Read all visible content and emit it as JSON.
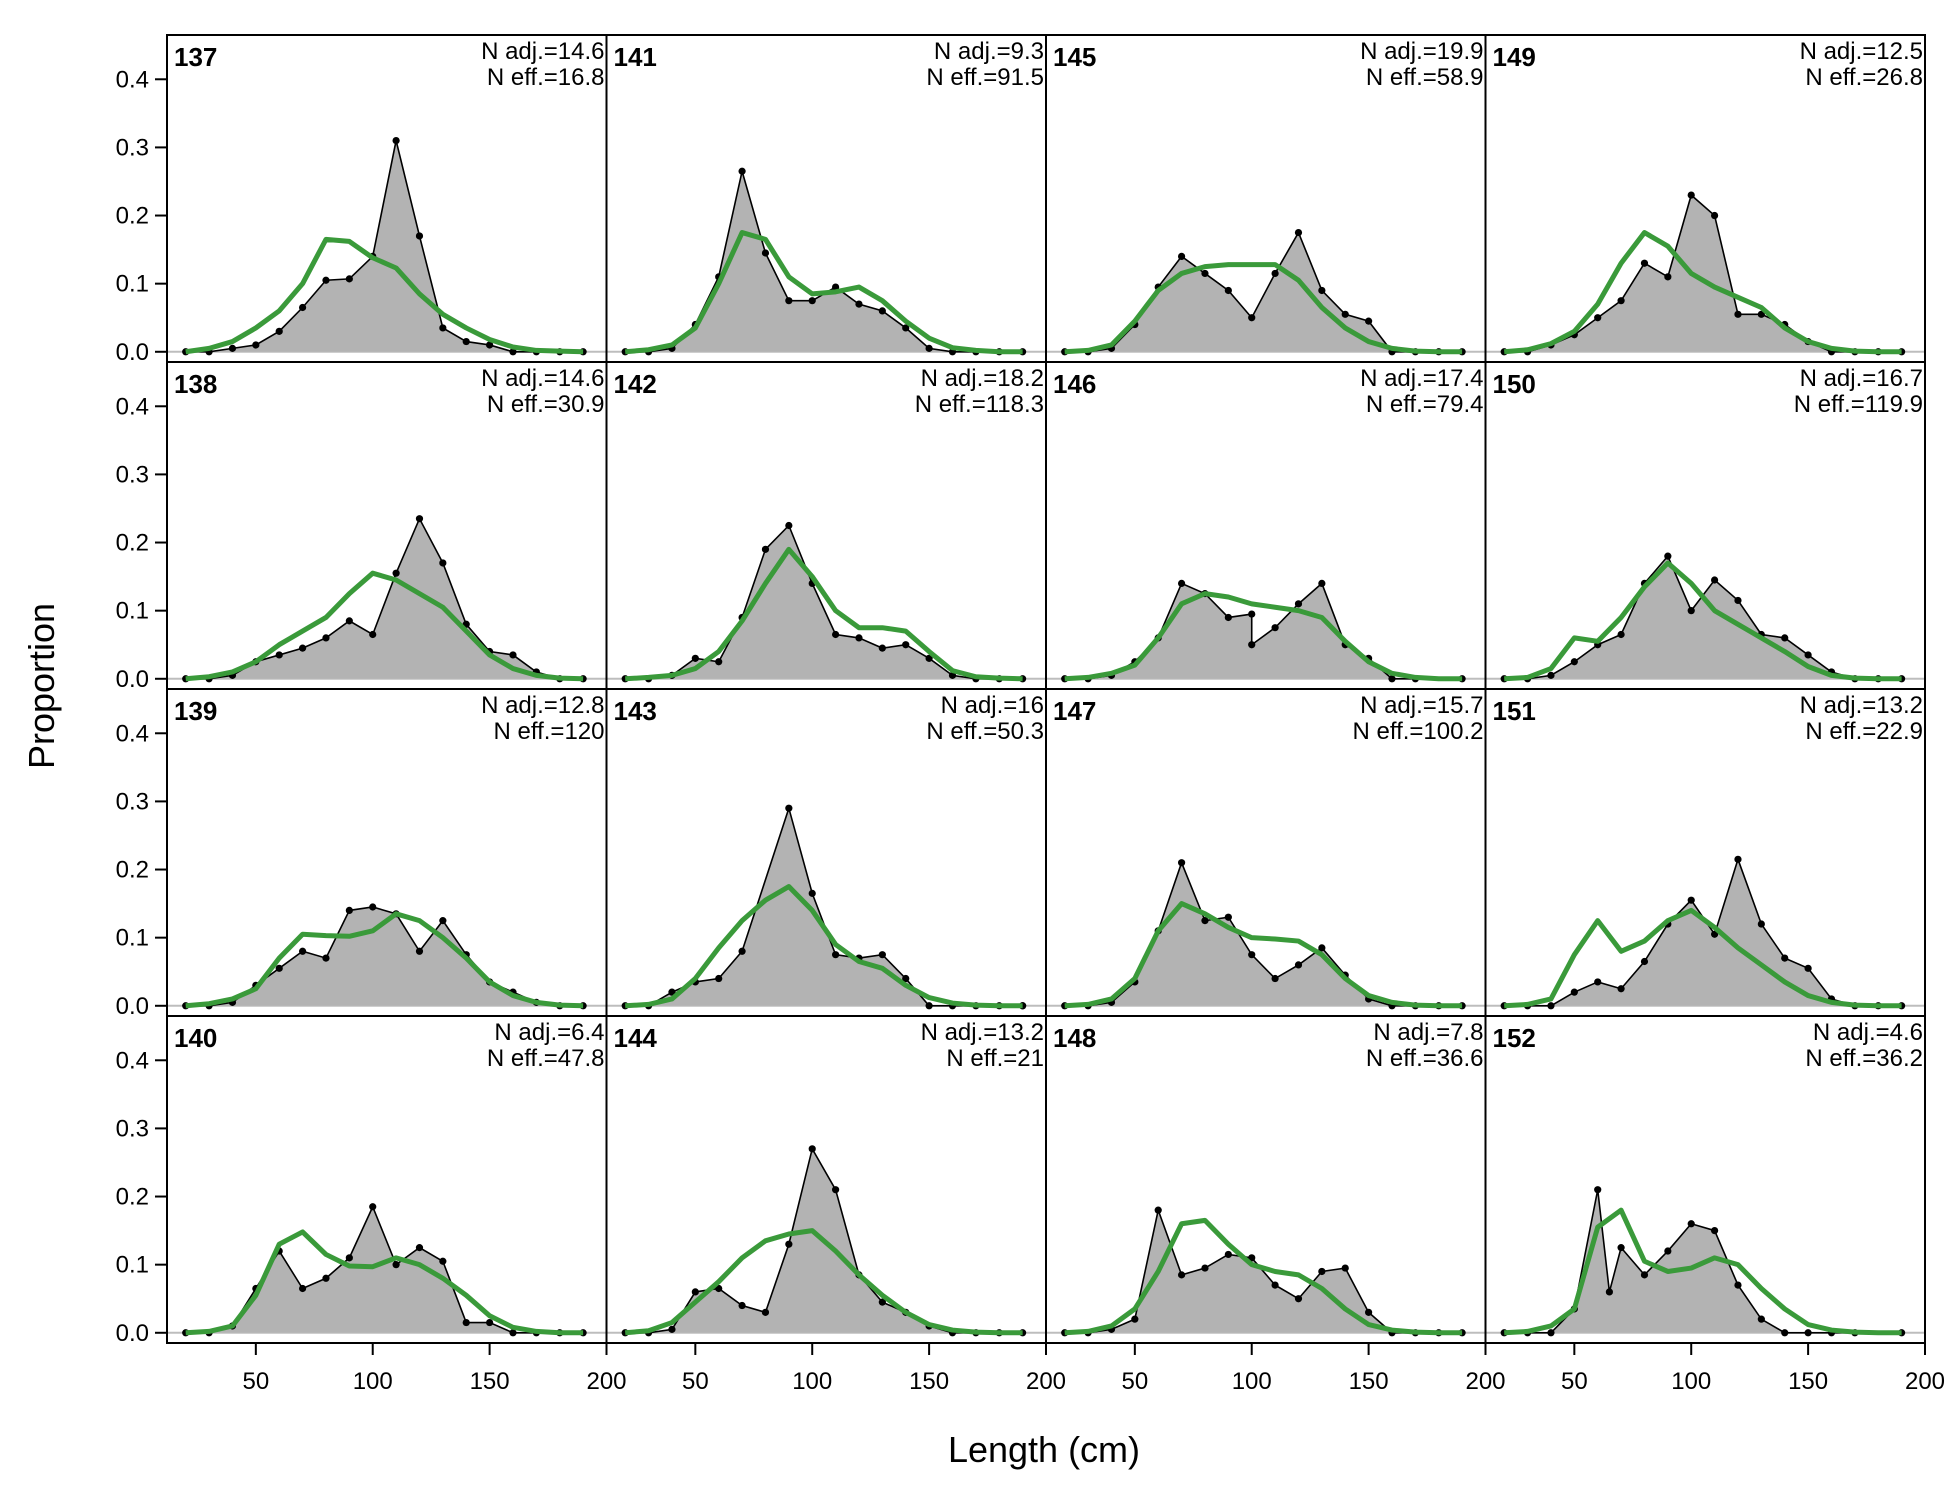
{
  "figure": {
    "xlabel": "Length (cm)",
    "ylabel": "Proportion",
    "colors": {
      "observed_fill": "#b3b3b3",
      "observed_line": "#000000",
      "expected_line": "#3a9a3a",
      "zero_line": "#bdbdbd",
      "frame": "#000000"
    }
  },
  "chart_data": {
    "type": "area",
    "layout": {
      "rows": 4,
      "cols": 4,
      "order": "column-major"
    },
    "xlim": [
      12,
      200
    ],
    "ylim": [
      -0.015,
      0.465
    ],
    "xticks": [
      50,
      100,
      150,
      200
    ],
    "yticks": [
      "0.0",
      "0.1",
      "0.2",
      "0.3",
      "0.4"
    ],
    "x": [
      20,
      30,
      40,
      50,
      60,
      70,
      80,
      90,
      100,
      110,
      120,
      130,
      140,
      150,
      160,
      170,
      180,
      190
    ],
    "series_names": [
      "observed",
      "expected"
    ],
    "panels": [
      {
        "id": "137",
        "n_adj": "N adj.=14.6",
        "n_eff": "N eff.=16.8",
        "observed": [
          0,
          0,
          0.005,
          0.01,
          0.03,
          0.065,
          0.105,
          0.107,
          0.14,
          0.31,
          0.17,
          0.035,
          0.015,
          0.01,
          0,
          0,
          0,
          0
        ],
        "expected": [
          0,
          0.005,
          0.015,
          0.035,
          0.06,
          0.1,
          0.165,
          0.162,
          0.138,
          0.123,
          0.085,
          0.055,
          0.035,
          0.018,
          0.007,
          0.002,
          0.001,
          0
        ]
      },
      {
        "id": "138",
        "n_adj": "N adj.=14.6",
        "n_eff": "N eff.=30.9",
        "observed": [
          0,
          0,
          0.005,
          0.025,
          0.035,
          0.045,
          0.06,
          0.085,
          0.065,
          0.155,
          0.235,
          0.17,
          0.08,
          0.04,
          0.035,
          0.01,
          0,
          0
        ],
        "expected": [
          0,
          0.003,
          0.01,
          0.025,
          0.05,
          0.07,
          0.09,
          0.125,
          0.155,
          0.145,
          0.125,
          0.105,
          0.07,
          0.035,
          0.015,
          0.005,
          0.001,
          0
        ]
      },
      {
        "id": "139",
        "n_adj": "N adj.=12.8",
        "n_eff": "N eff.=120",
        "observed": [
          0,
          0,
          0.005,
          0.03,
          0.055,
          0.08,
          0.07,
          0.14,
          0.145,
          0.135,
          0.08,
          0.125,
          0.075,
          0.035,
          0.02,
          0.005,
          0,
          0
        ],
        "expected": [
          0,
          0.003,
          0.01,
          0.025,
          0.07,
          0.105,
          0.103,
          0.102,
          0.11,
          0.135,
          0.125,
          0.1,
          0.07,
          0.035,
          0.015,
          0.005,
          0.001,
          0
        ]
      },
      {
        "id": "140",
        "n_adj": "N adj.=6.4",
        "n_eff": "N eff.=47.8",
        "observed": [
          0,
          0,
          0.01,
          0.065,
          0.12,
          0.065,
          0.08,
          0.11,
          0.185,
          0.1,
          0.125,
          0.105,
          0.015,
          0.015,
          0,
          0,
          0,
          0
        ],
        "expected": [
          0,
          0.002,
          0.01,
          0.055,
          0.13,
          0.148,
          0.115,
          0.098,
          0.097,
          0.11,
          0.1,
          0.08,
          0.055,
          0.025,
          0.008,
          0.002,
          0,
          0
        ]
      },
      {
        "id": "141",
        "n_adj": "N adj.=9.3",
        "n_eff": "N eff.=91.5",
        "observed": [
          0,
          0,
          0.005,
          0.04,
          0.11,
          0.265,
          0.145,
          0.075,
          0.075,
          0.095,
          0.07,
          0.06,
          0.035,
          0.005,
          0,
          0,
          0,
          0
        ],
        "expected": [
          0,
          0.003,
          0.01,
          0.035,
          0.1,
          0.175,
          0.165,
          0.11,
          0.085,
          0.088,
          0.095,
          0.075,
          0.045,
          0.02,
          0.006,
          0.002,
          0,
          0
        ]
      },
      {
        "id": "142",
        "n_adj": "N adj.=18.2",
        "n_eff": "N eff.=118.3",
        "observed": [
          0,
          0,
          0.005,
          0.03,
          0.025,
          0.09,
          0.19,
          0.225,
          0.14,
          0.065,
          0.06,
          0.045,
          0.05,
          0.03,
          0.005,
          0,
          0,
          0
        ],
        "expected": [
          0,
          0.002,
          0.005,
          0.015,
          0.04,
          0.085,
          0.14,
          0.19,
          0.15,
          0.1,
          0.075,
          0.075,
          0.07,
          0.04,
          0.012,
          0.003,
          0.001,
          0
        ]
      },
      {
        "id": "143",
        "n_adj": "N adj.=16",
        "n_eff": "N eff.=50.3",
        "observed": [
          0,
          0,
          0.02,
          0.035,
          0.04,
          0.08,
          0.29,
          0.165,
          0.075,
          0.07,
          0.075,
          0.04,
          0,
          0,
          0,
          0,
          0,
          0
        ],
        "expected": [
          0,
          0.002,
          0.01,
          0.04,
          0.085,
          0.125,
          0.155,
          0.175,
          0.14,
          0.09,
          0.065,
          0.055,
          0.03,
          0.012,
          0.004,
          0.001,
          0,
          0
        ],
        "obs_x": [
          20,
          30,
          40,
          50,
          60,
          70,
          90,
          100,
          110,
          120,
          130,
          140,
          150,
          160,
          170,
          180,
          190,
          190
        ]
      },
      {
        "id": "144",
        "n_adj": "N adj.=13.2",
        "n_eff": "N eff.=21",
        "observed": [
          0,
          0,
          0.005,
          0.06,
          0.065,
          0.04,
          0.03,
          0.13,
          0.27,
          0.21,
          0.085,
          0.045,
          0.03,
          0.01,
          0,
          0,
          0,
          0
        ],
        "expected": [
          0,
          0.003,
          0.015,
          0.045,
          0.075,
          0.11,
          0.135,
          0.145,
          0.15,
          0.12,
          0.085,
          0.055,
          0.03,
          0.012,
          0.004,
          0.001,
          0,
          0
        ]
      },
      {
        "id": "145",
        "n_adj": "N adj.=19.9",
        "n_eff": "N eff.=58.9",
        "observed": [
          0,
          0,
          0.005,
          0.04,
          0.095,
          0.14,
          0.115,
          0.09,
          0.05,
          0.115,
          0.175,
          0.09,
          0.055,
          0.045,
          0,
          0,
          0,
          0
        ],
        "expected": [
          0,
          0.002,
          0.01,
          0.045,
          0.09,
          0.115,
          0.125,
          0.128,
          0.128,
          0.128,
          0.105,
          0.065,
          0.035,
          0.015,
          0.005,
          0.001,
          0,
          0
        ]
      },
      {
        "id": "146",
        "n_adj": "N adj.=17.4",
        "n_eff": "N eff.=79.4",
        "observed": [
          0,
          0,
          0.005,
          0.025,
          0.06,
          0.14,
          0.125,
          0.09,
          0.095,
          0.05,
          0.075,
          0.11,
          0.14,
          0.05,
          0.03,
          0,
          0,
          0
        ],
        "expected": [
          0,
          0.002,
          0.008,
          0.02,
          0.06,
          0.11,
          0.125,
          0.12,
          0.11,
          0.105,
          0.1,
          0.09,
          0.055,
          0.025,
          0.008,
          0.002,
          0,
          0
        ],
        "obs_x": [
          20,
          30,
          40,
          50,
          60,
          70,
          80,
          90,
          100,
          100,
          110,
          120,
          130,
          140,
          150,
          160,
          170,
          190
        ]
      },
      {
        "id": "147",
        "n_adj": "N adj.=15.7",
        "n_eff": "N eff.=100.2",
        "observed": [
          0,
          0,
          0.005,
          0.035,
          0.11,
          0.21,
          0.125,
          0.13,
          0.075,
          0.04,
          0.06,
          0.085,
          0.045,
          0.01,
          0,
          0,
          0,
          0
        ],
        "expected": [
          0,
          0.002,
          0.01,
          0.04,
          0.11,
          0.15,
          0.135,
          0.115,
          0.1,
          0.098,
          0.095,
          0.075,
          0.04,
          0.015,
          0.005,
          0.001,
          0,
          0
        ]
      },
      {
        "id": "148",
        "n_adj": "N adj.=7.8",
        "n_eff": "N eff.=36.6",
        "observed": [
          0,
          0,
          0.005,
          0.02,
          0.18,
          0.085,
          0.095,
          0.115,
          0.11,
          0.07,
          0.05,
          0.09,
          0.095,
          0.03,
          0,
          0,
          0,
          0
        ],
        "expected": [
          0,
          0.002,
          0.01,
          0.035,
          0.09,
          0.16,
          0.165,
          0.13,
          0.1,
          0.09,
          0.085,
          0.065,
          0.035,
          0.012,
          0.004,
          0.001,
          0,
          0
        ]
      },
      {
        "id": "149",
        "n_adj": "N adj.=12.5",
        "n_eff": "N eff.=26.8",
        "observed": [
          0,
          0,
          0.01,
          0.025,
          0.05,
          0.075,
          0.13,
          0.11,
          0.23,
          0.2,
          0.055,
          0.055,
          0.04,
          0.015,
          0,
          0,
          0,
          0
        ],
        "expected": [
          0,
          0.003,
          0.012,
          0.03,
          0.07,
          0.13,
          0.175,
          0.155,
          0.115,
          0.095,
          0.08,
          0.065,
          0.035,
          0.015,
          0.005,
          0.001,
          0,
          0
        ]
      },
      {
        "id": "150",
        "n_adj": "N adj.=16.7",
        "n_eff": "N eff.=119.9",
        "observed": [
          0,
          0,
          0.005,
          0.025,
          0.05,
          0.065,
          0.14,
          0.18,
          0.1,
          0.145,
          0.115,
          0.065,
          0.06,
          0.035,
          0.01,
          0,
          0,
          0
        ],
        "expected": [
          0,
          0.002,
          0.015,
          0.06,
          0.055,
          0.09,
          0.135,
          0.17,
          0.14,
          0.1,
          0.08,
          0.06,
          0.04,
          0.018,
          0.005,
          0.001,
          0,
          0
        ]
      },
      {
        "id": "151",
        "n_adj": "N adj.=13.2",
        "n_eff": "N eff.=22.9",
        "observed": [
          0,
          0,
          0,
          0.02,
          0.035,
          0.025,
          0.065,
          0.12,
          0.155,
          0.105,
          0.215,
          0.12,
          0.07,
          0.055,
          0.01,
          0,
          0,
          0
        ],
        "expected": [
          0,
          0.002,
          0.01,
          0.075,
          0.125,
          0.08,
          0.095,
          0.125,
          0.14,
          0.115,
          0.085,
          0.06,
          0.035,
          0.015,
          0.005,
          0.001,
          0,
          0
        ]
      },
      {
        "id": "152",
        "n_adj": "N adj.=4.6",
        "n_eff": "N eff.=36.2",
        "observed": [
          0,
          0,
          0,
          0.035,
          0.21,
          0.06,
          0.125,
          0.085,
          0.12,
          0.16,
          0.15,
          0.07,
          0.02,
          0,
          0,
          0,
          0,
          0
        ],
        "expected": [
          0,
          0.002,
          0.01,
          0.035,
          0.155,
          0.18,
          0.105,
          0.09,
          0.095,
          0.11,
          0.1,
          0.065,
          0.035,
          0.012,
          0.004,
          0.001,
          0,
          0
        ],
        "obs_x": [
          20,
          30,
          40,
          50,
          60,
          65,
          70,
          80,
          90,
          100,
          110,
          120,
          130,
          140,
          150,
          160,
          170,
          190
        ]
      }
    ]
  }
}
